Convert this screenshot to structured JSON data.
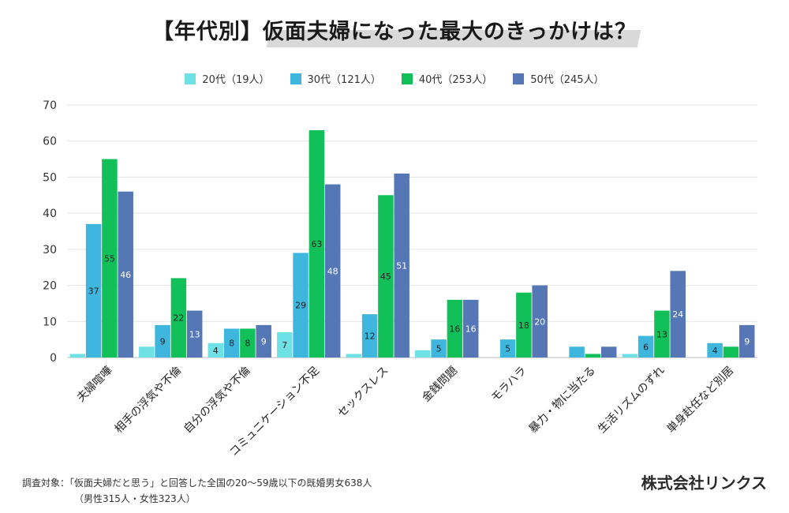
{
  "chart_data": {
    "type": "bar",
    "title": "【年代別】仮面夫婦になった最大のきっかけは？",
    "ylim": [
      0,
      70
    ],
    "yticks": [
      0,
      10,
      20,
      30,
      40,
      50,
      60,
      70
    ],
    "grid": true,
    "legend_position": "top",
    "categories": [
      "夫婦喧嘩",
      "相手の浮気や不倫",
      "自分の浮気や不倫",
      "コミュニケーション不足",
      "セックスレス",
      "金銭問題",
      "モラハラ",
      "暴力・物に当たる",
      "生活リズムのずれ",
      "単身赴任など別居"
    ],
    "series": [
      {
        "name": "20代（19人）",
        "color": "#6ee1e6",
        "values": [
          1,
          3,
          4,
          7,
          1,
          2,
          0,
          0,
          1,
          0
        ],
        "labels": [
          "",
          "",
          "4",
          "7",
          "",
          "",
          "",
          "",
          "",
          ""
        ]
      },
      {
        "name": "30代（121人）",
        "color": "#3fb6dd",
        "values": [
          37,
          9,
          8,
          29,
          12,
          5,
          5,
          3,
          6,
          4
        ],
        "labels": [
          "37",
          "9",
          "8",
          "29",
          "12",
          "5",
          "5",
          "",
          "6",
          "4"
        ]
      },
      {
        "name": "40代（253人）",
        "color": "#12c05a",
        "values": [
          55,
          22,
          8,
          63,
          45,
          16,
          18,
          1,
          13,
          3
        ],
        "labels": [
          "55",
          "22",
          "8",
          "63",
          "45",
          "16",
          "18",
          "",
          "13",
          ""
        ]
      },
      {
        "name": "50代（245人）",
        "color": "#5577b5",
        "values": [
          46,
          13,
          9,
          48,
          51,
          16,
          20,
          3,
          24,
          9
        ],
        "labels": [
          "46",
          "13",
          "9",
          "48",
          "51",
          "16",
          "20",
          "",
          "24",
          "9"
        ]
      }
    ]
  },
  "footnote": {
    "line1": "調査対象：「仮面夫婦だと思う」と回答した全国の20〜59歳以下の既婚男女638人",
    "line2": "（男性315人・女性323人）"
  },
  "company": "株式会社リンクス"
}
